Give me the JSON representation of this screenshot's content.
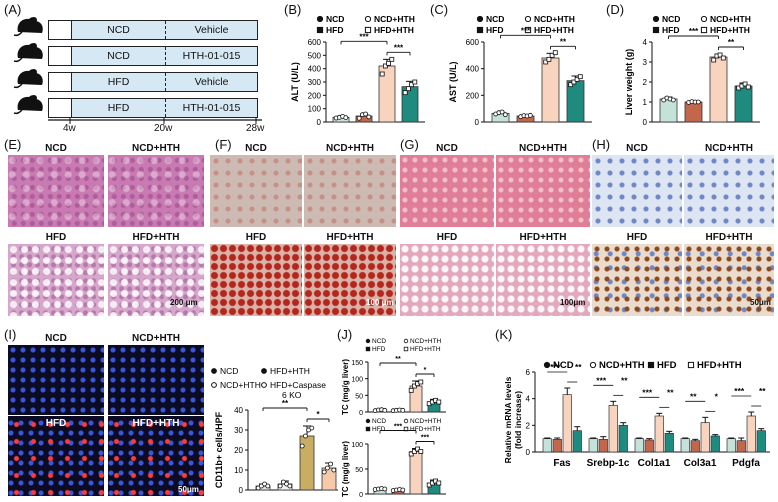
{
  "panels": {
    "A": "(A)",
    "B": "(B)",
    "C": "(C)",
    "D": "(D)",
    "E": "(E)",
    "F": "(F)",
    "G": "(G)",
    "H": "(H)",
    "I": "(I)",
    "J": "(J)",
    "K": "(K)"
  },
  "design": {
    "rows": [
      {
        "diet": "NCD",
        "treatment": "Vehicle"
      },
      {
        "diet": "NCD",
        "treatment": "HTH-01-015"
      },
      {
        "diet": "HFD",
        "treatment": "Vehicle"
      },
      {
        "diet": "HFD",
        "treatment": "HTH-01-015"
      }
    ],
    "timeline": [
      "4w",
      "20w",
      "28w"
    ]
  },
  "histology": {
    "labels": [
      "NCD",
      "NCD+HTH",
      "HFD",
      "HFD+HTH"
    ],
    "E_scale": "200 μm",
    "F_scale": "100 μm",
    "G_scale": "100μm",
    "H_scale": "50μm",
    "I_scale": "50μm"
  },
  "legend4": {
    "ncd": "NCD",
    "ncdhth": "NCD+HTH",
    "hfd": "HFD",
    "hfdhth": "HFD+HTH"
  },
  "legendI": {
    "ncd": "NCD",
    "ncdhth": "NCD+HTH",
    "hfdhth": "HFD+HTH",
    "caspase": "HFD+Caspase 6 KO"
  },
  "colors": {
    "ncd": "#c4e2d9",
    "ncdhth": "#c2674b",
    "hfd": "#f8d3bd",
    "hfdhth": "#1f8a7e",
    "i_ncd": "#e2e2e2",
    "i_ncdhth": "#f3f3f3",
    "i_hfdhth": "#c9ad62",
    "i_casp": "#f6c9a9"
  },
  "chart_data": [
    {
      "id": "B",
      "type": "bar",
      "categories": [
        "NCD",
        "NCD+HTH",
        "HFD",
        "HFD+HTH"
      ],
      "values": [
        35,
        45,
        420,
        265
      ],
      "errors": [
        8,
        15,
        50,
        40
      ],
      "ylabel": "ALT (U/L)",
      "ylim": [
        0,
        600
      ],
      "yticks": [
        0,
        100,
        200,
        300,
        400,
        500,
        600
      ],
      "points": [
        [
          30,
          35,
          42,
          33
        ],
        [
          28,
          55,
          60,
          38
        ],
        [
          360,
          420,
          440,
          470
        ],
        [
          220,
          250,
          280,
          300
        ]
      ],
      "significance": [
        {
          "from": 1,
          "to": 3,
          "text": "***"
        },
        {
          "from": 3,
          "to": 4,
          "text": "***"
        }
      ]
    },
    {
      "id": "C",
      "type": "bar",
      "categories": [
        "NCD",
        "NCD+HTH",
        "HFD",
        "HFD+HTH"
      ],
      "values": [
        65,
        45,
        480,
        310
      ],
      "errors": [
        10,
        8,
        35,
        35
      ],
      "ylabel": "AST (U/L)",
      "ylim": [
        0,
        600
      ],
      "yticks": [
        0,
        200,
        400,
        600
      ],
      "points": [
        [
          60,
          70,
          75,
          55
        ],
        [
          40,
          48,
          45,
          50
        ],
        [
          450,
          470,
          500,
          520
        ],
        [
          280,
          300,
          320,
          340
        ]
      ],
      "significance": [
        {
          "from": 1,
          "to": 3,
          "text": "***"
        },
        {
          "from": 3,
          "to": 4,
          "text": "**"
        }
      ]
    },
    {
      "id": "D",
      "type": "bar",
      "categories": [
        "NCD",
        "NCD+HTH",
        "HFD",
        "HFD+HTH"
      ],
      "values": [
        1.15,
        1.0,
        3.25,
        1.8
      ],
      "errors": [
        0.1,
        0.05,
        0.15,
        0.15
      ],
      "ylabel": "Liver weight (g)",
      "ylim": [
        0,
        4
      ],
      "yticks": [
        0,
        1,
        2,
        3,
        4
      ],
      "points": [
        [
          1.1,
          1.2,
          1.15,
          1.1
        ],
        [
          0.98,
          1.02,
          1.0,
          1.0
        ],
        [
          3.1,
          3.3,
          3.35,
          3.2
        ],
        [
          1.7,
          1.8,
          1.9,
          1.75
        ]
      ],
      "significance": [
        {
          "from": 1,
          "to": 3,
          "text": "***"
        },
        {
          "from": 3,
          "to": 4,
          "text": "**"
        }
      ]
    },
    {
      "id": "I",
      "type": "bar",
      "categories": [
        "NCD",
        "NCD+HTH",
        "HFD+HTH",
        "HFD+Caspase 6 KO"
      ],
      "values": [
        2,
        3,
        27,
        11
      ],
      "errors": [
        1,
        1.5,
        5,
        2.5
      ],
      "ylabel": "CD11b+ cells/HPF",
      "ylim": [
        0,
        40
      ],
      "yticks": [
        0,
        10,
        20,
        30,
        40
      ],
      "points": [
        [
          1,
          2,
          3,
          2
        ],
        [
          2,
          4,
          3,
          2
        ],
        [
          22,
          27,
          30,
          31
        ],
        [
          9,
          11,
          13,
          10
        ]
      ],
      "significance": [
        {
          "from": 1,
          "to": 3,
          "text": "**"
        },
        {
          "from": 3,
          "to": 4,
          "text": "*"
        }
      ]
    },
    {
      "id": "J1",
      "type": "bar",
      "categories": [
        "NCD",
        "NCD+HTH",
        "HFD",
        "HFD+HTH"
      ],
      "values": [
        6,
        5,
        78,
        30
      ],
      "errors": [
        2,
        2,
        15,
        8
      ],
      "ylabel": "TC (mg/g liver)",
      "ylim": [
        0,
        150
      ],
      "yticks": [
        0,
        50,
        100,
        150
      ],
      "points": [
        [
          4,
          6,
          7,
          5
        ],
        [
          4,
          5,
          6,
          5
        ],
        [
          65,
          78,
          85,
          90
        ],
        [
          25,
          30,
          35,
          30
        ]
      ],
      "significance": [
        {
          "from": 1,
          "to": 3,
          "text": "**"
        },
        {
          "from": 3,
          "to": 4,
          "text": "*"
        }
      ]
    },
    {
      "id": "J2",
      "type": "bar",
      "categories": [
        "NCD",
        "NCD+HTH",
        "HFD",
        "HFD+HTH"
      ],
      "values": [
        10,
        8,
        85,
        22
      ],
      "errors": [
        2,
        2,
        6,
        6
      ],
      "ylabel": "TC (mg/g liver)",
      "ylim": [
        0,
        100
      ],
      "yticks": [
        0,
        50,
        100
      ],
      "points": [
        [
          9,
          10,
          11,
          10
        ],
        [
          7,
          8,
          9,
          8
        ],
        [
          80,
          85,
          90,
          85
        ],
        [
          18,
          22,
          26,
          22
        ]
      ],
      "significance": [
        {
          "from": 1,
          "to": 3,
          "text": "***"
        },
        {
          "from": 3,
          "to": 4,
          "text": "***"
        }
      ]
    },
    {
      "id": "K",
      "type": "bar",
      "ylabel": "Relative mRNA levels (fold increase)",
      "ylim": [
        0,
        6
      ],
      "yticks": [
        0,
        2,
        4,
        6
      ],
      "categories": [
        "Fas",
        "Srebp-1c",
        "Col1a1",
        "Col3a1",
        "Pdgfa"
      ],
      "series": [
        {
          "name": "NCD",
          "values": [
            1,
            1,
            1,
            1,
            1
          ],
          "errors": [
            0.05,
            0.05,
            0.05,
            0.05,
            0.05
          ]
        },
        {
          "name": "NCD+HTH",
          "values": [
            0.95,
            0.95,
            0.9,
            0.85,
            0.85
          ],
          "errors": [
            0.1,
            0.2,
            0.1,
            0.1,
            0.2
          ]
        },
        {
          "name": "HFD",
          "values": [
            4.3,
            3.5,
            2.7,
            2.2,
            2.7
          ],
          "errors": [
            0.5,
            0.3,
            0.2,
            0.4,
            0.3
          ]
        },
        {
          "name": "HFD+HTH",
          "values": [
            1.6,
            2,
            1.4,
            1.2,
            1.6
          ],
          "errors": [
            0.3,
            0.2,
            0.15,
            0.1,
            0.15
          ]
        }
      ],
      "significance": [
        {
          "cat": 0,
          "a": "***",
          "b": "**"
        },
        {
          "cat": 1,
          "a": "***",
          "b": "**"
        },
        {
          "cat": 2,
          "a": "***",
          "b": "**"
        },
        {
          "cat": 3,
          "a": "**",
          "b": "*"
        },
        {
          "cat": 4,
          "a": "***",
          "b": "**"
        }
      ]
    }
  ]
}
